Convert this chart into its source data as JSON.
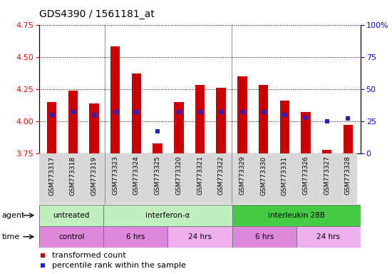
{
  "title": "GDS4390 / 1561181_at",
  "samples": [
    "GSM773317",
    "GSM773318",
    "GSM773319",
    "GSM773323",
    "GSM773324",
    "GSM773325",
    "GSM773320",
    "GSM773321",
    "GSM773322",
    "GSM773329",
    "GSM773330",
    "GSM773331",
    "GSM773326",
    "GSM773327",
    "GSM773328"
  ],
  "red_values": [
    4.15,
    4.24,
    4.14,
    4.58,
    4.37,
    3.83,
    4.15,
    4.28,
    4.26,
    4.35,
    4.28,
    4.16,
    4.07,
    3.78,
    3.97
  ],
  "blue_values": [
    30,
    32,
    30,
    32,
    32,
    17,
    32,
    32,
    32,
    32,
    32,
    30,
    28,
    25,
    27
  ],
  "ymin": 3.75,
  "ymax": 4.75,
  "yticks_left": [
    3.75,
    4.0,
    4.25,
    4.5,
    4.75
  ],
  "yticks_right": [
    0,
    25,
    50,
    75,
    100
  ],
  "bar_width": 0.45,
  "bar_color": "#cc0000",
  "blue_color": "#2222cc",
  "agent_groups": [
    {
      "label": "untreated",
      "start": 0,
      "end": 3,
      "color": "#c0f0c0"
    },
    {
      "label": "interferon-α",
      "start": 3,
      "end": 9,
      "color": "#c0f0c0"
    },
    {
      "label": "interleukin 28B",
      "start": 9,
      "end": 15,
      "color": "#44cc44"
    }
  ],
  "time_groups": [
    {
      "label": "control",
      "start": 0,
      "end": 3,
      "color": "#dd88dd"
    },
    {
      "label": "6 hrs",
      "start": 3,
      "end": 6,
      "color": "#dd88dd"
    },
    {
      "label": "24 hrs",
      "start": 6,
      "end": 9,
      "color": "#eeb0ee"
    },
    {
      "label": "6 hrs",
      "start": 9,
      "end": 12,
      "color": "#dd88dd"
    },
    {
      "label": "24 hrs",
      "start": 12,
      "end": 15,
      "color": "#eeb0ee"
    }
  ],
  "legend_items": [
    {
      "label": "transformed count",
      "color": "#cc0000",
      "marker": "s"
    },
    {
      "label": "percentile rank within the sample",
      "color": "#2222cc",
      "marker": "s"
    }
  ],
  "grid_color": "black",
  "separator_color": "#999999"
}
